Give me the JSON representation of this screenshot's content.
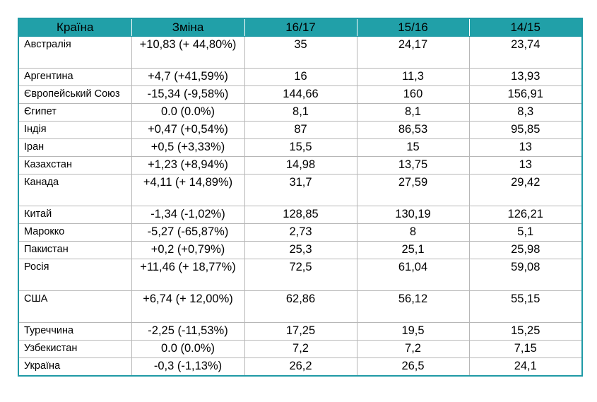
{
  "table": {
    "headers": [
      "Країна",
      "Зміна",
      "16/17",
      "15/16",
      "14/15"
    ],
    "rows": [
      {
        "country": "Австралія",
        "change": "+10,83 (+ 44,80%)",
        "y1617": "35",
        "y1516": "24,17",
        "y1415": "23,74"
      },
      {
        "country": "Аргентина",
        "change": "+4,7 (+41,59%)",
        "y1617": "16",
        "y1516": "11,3",
        "y1415": "13,93"
      },
      {
        "country": "Європейський Союз",
        "change": "-15,34 (-9,58%)",
        "y1617": "144,66",
        "y1516": "160",
        "y1415": "156,91"
      },
      {
        "country": "Єгипет",
        "change": "0.0 (0.0%)",
        "y1617": "8,1",
        "y1516": "8,1",
        "y1415": "8,3"
      },
      {
        "country": "Індія",
        "change": "+0,47 (+0,54%)",
        "y1617": "87",
        "y1516": "86,53",
        "y1415": "95,85"
      },
      {
        "country": "Іран",
        "change": "+0,5 (+3,33%)",
        "y1617": "15,5",
        "y1516": "15",
        "y1415": "13"
      },
      {
        "country": "Казахстан",
        "change": "+1,23 (+8,94%)",
        "y1617": "14,98",
        "y1516": "13,75",
        "y1415": "13"
      },
      {
        "country": "Канада",
        "change": "+4,11 (+ 14,89%)",
        "y1617": "31,7",
        "y1516": "27,59",
        "y1415": "29,42"
      },
      {
        "country": "Китай",
        "change": "-1,34 (-1,02%)",
        "y1617": "128,85",
        "y1516": "130,19",
        "y1415": "126,21"
      },
      {
        "country": "Марокко",
        "change": "-5,27 (-65,87%)",
        "y1617": "2,73",
        "y1516": "8",
        "y1415": "5,1"
      },
      {
        "country": "Пакистан",
        "change": "+0,2 (+0,79%)",
        "y1617": "25,3",
        "y1516": "25,1",
        "y1415": "25,98"
      },
      {
        "country": "Росія",
        "change": "+11,46 (+ 18,77%)",
        "y1617": "72,5",
        "y1516": "61,04",
        "y1415": "59,08"
      },
      {
        "country": "США",
        "change": "+6,74 (+ 12,00%)",
        "y1617": "62,86",
        "y1516": "56,12",
        "y1415": "55,15"
      },
      {
        "country": "Туреччина",
        "change": "-2,25 (-11,53%)",
        "y1617": "17,25",
        "y1516": "19,5",
        "y1415": "15,25"
      },
      {
        "country": "Узбекистан",
        "change": "0.0 (0.0%)",
        "y1617": "7,2",
        "y1516": "7,2",
        "y1415": "7,15"
      },
      {
        "country": "Україна",
        "change": "-0,3 (-1,13%)",
        "y1617": "26,2",
        "y1516": "26,5",
        "y1415": "24,1"
      }
    ]
  },
  "colors": {
    "header_bg": "#21a0a8",
    "border": "#1f9aa6",
    "grid": "#b7b7b7"
  }
}
